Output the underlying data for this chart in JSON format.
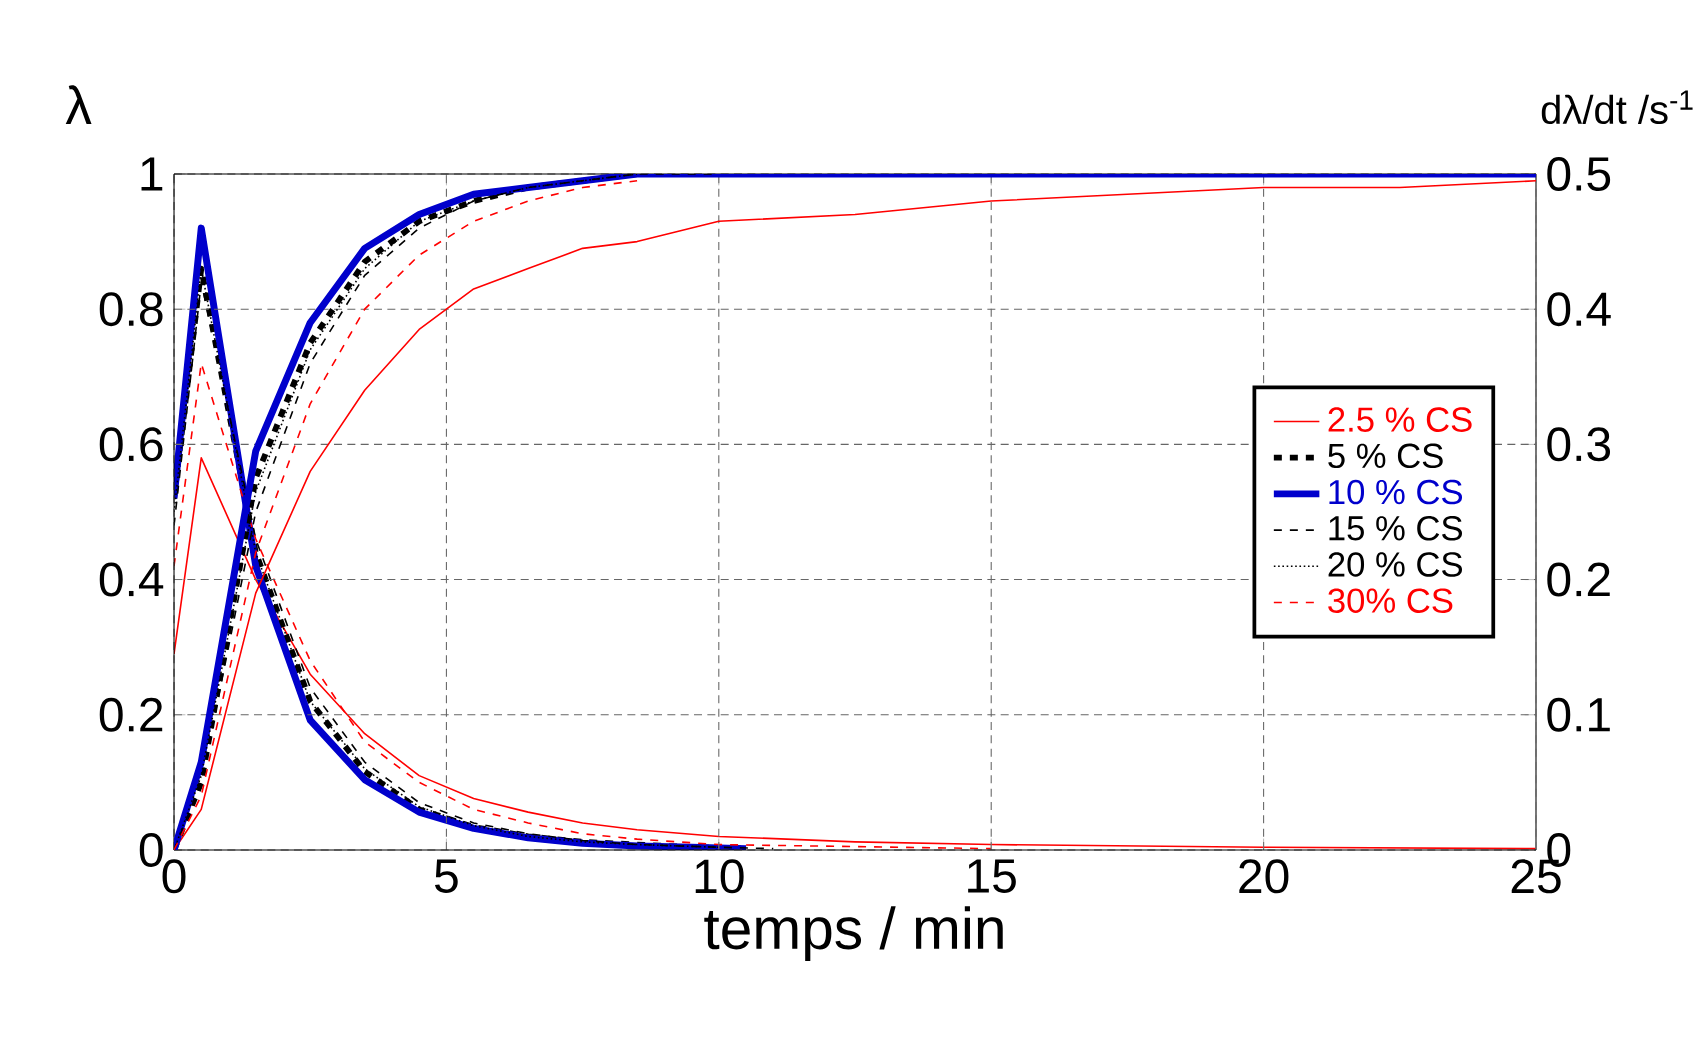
{
  "chart_data": {
    "type": "line",
    "xlabel": "temps / min",
    "ylabel": "λ",
    "y2label": "dλ/dt /s$^{-1}$",
    "xlim": [
      0,
      25
    ],
    "ylim": [
      0,
      1
    ],
    "y2lim": [
      0,
      0.5
    ],
    "xticks": [
      0,
      5,
      10,
      15,
      20,
      25
    ],
    "yticks": [
      0,
      0.2,
      0.4,
      0.6,
      0.8,
      1
    ],
    "y2ticks": [
      0,
      0.1,
      0.2,
      0.3,
      0.4,
      0.5
    ],
    "grid": true,
    "legend": "right",
    "series": [
      {
        "name": "2.5 % CS",
        "color": "#ff0000",
        "line_style": "solid",
        "x": [
          0,
          0.5,
          1.5,
          2.5,
          3.5,
          4.5,
          5.5,
          6.5,
          7.5,
          8.5,
          10,
          12.5,
          15,
          17.5,
          20,
          22.5,
          25
        ],
        "values": [
          0,
          0.06,
          0.38,
          0.56,
          0.68,
          0.77,
          0.83,
          0.86,
          0.89,
          0.9,
          0.93,
          0.94,
          0.96,
          0.97,
          0.98,
          0.98,
          0.99
        ]
      },
      {
        "name": "5 % CS",
        "color": "#000000",
        "line_style": "dashed",
        "x": [
          0,
          0.5,
          1.5,
          2.5,
          3.5,
          4.5,
          5.5,
          6.5,
          7.5,
          8.5,
          9.5,
          11
        ],
        "values": [
          0,
          0.1,
          0.55,
          0.75,
          0.87,
          0.93,
          0.96,
          0.98,
          0.99,
          1,
          1,
          1
        ]
      },
      {
        "name": "10 % CS",
        "color": "#0000cc",
        "line_style": "solid",
        "x": [
          0,
          0.5,
          1.5,
          2.5,
          3.5,
          4.5,
          5.5,
          6.5,
          7.5,
          8.5,
          9.5,
          25
        ],
        "values": [
          0,
          0.13,
          0.59,
          0.78,
          0.89,
          0.94,
          0.97,
          0.98,
          0.99,
          1,
          1,
          1
        ]
      },
      {
        "name": "15 % CS",
        "color": "#000000",
        "line_style": "dashed",
        "x": [
          0,
          0.5,
          1.5,
          2.5,
          3.5,
          4.5,
          5.5,
          6.5,
          7.5,
          8.5,
          10
        ],
        "values": [
          0,
          0.1,
          0.5,
          0.72,
          0.85,
          0.92,
          0.96,
          0.98,
          0.99,
          1,
          1
        ]
      },
      {
        "name": "20 % CS",
        "color": "#000000",
        "line_style": "dotted",
        "x": [
          0,
          0.5,
          1.5,
          2.5,
          3.5,
          4.5,
          5.5,
          6.5,
          7.5,
          8.5
        ],
        "values": [
          0,
          0.11,
          0.53,
          0.74,
          0.86,
          0.93,
          0.96,
          0.98,
          0.99,
          1
        ]
      },
      {
        "name": "30% CS",
        "color": "#ff0000",
        "line_style": "dashed",
        "x": [
          0,
          0.5,
          1.5,
          2.5,
          3.5,
          4.5,
          5.5,
          6.5,
          7.5,
          8.5
        ],
        "values": [
          0,
          0.08,
          0.44,
          0.66,
          0.8,
          0.88,
          0.93,
          0.96,
          0.98,
          0.99
        ]
      },
      {
        "axis": "y2",
        "color": "#ff0000",
        "line_style": "solid",
        "x": [
          0,
          0.5,
          1.5,
          2.5,
          3.5,
          4.5,
          5.5,
          6.5,
          7.5,
          8.5,
          10,
          12.5,
          15,
          20,
          25
        ],
        "values": [
          0.145,
          0.29,
          0.2,
          0.13,
          0.086,
          0.055,
          0.038,
          0.028,
          0.02,
          0.015,
          0.01,
          0.006,
          0.004,
          0.002,
          0.001
        ]
      },
      {
        "axis": "y2",
        "color": "#000000",
        "line_style": "dashed",
        "x": [
          0,
          0.5,
          1.5,
          2.5,
          3.5,
          4.5,
          5.5,
          6.5,
          7.5,
          8.5,
          9.5,
          10.5
        ],
        "values": [
          0.26,
          0.43,
          0.22,
          0.11,
          0.058,
          0.03,
          0.017,
          0.01,
          0.006,
          0.004,
          0.002,
          0.001
        ]
      },
      {
        "axis": "y2",
        "color": "#0000cc",
        "line_style": "solid",
        "x": [
          0,
          0.5,
          1.5,
          2.5,
          3.5,
          4.5,
          5.5,
          6.5,
          7.5,
          8.5,
          9.5,
          10.5
        ],
        "values": [
          0.26,
          0.46,
          0.21,
          0.096,
          0.052,
          0.028,
          0.016,
          0.009,
          0.005,
          0.003,
          0.002,
          0.001
        ]
      },
      {
        "axis": "y2",
        "color": "#000000",
        "line_style": "dashed",
        "x": [
          0,
          0.5,
          1.5,
          2.5,
          3.5,
          4.5,
          5.5,
          6.5,
          7.5,
          8.5,
          10,
          11
        ],
        "values": [
          0.24,
          0.42,
          0.23,
          0.12,
          0.065,
          0.035,
          0.02,
          0.012,
          0.007,
          0.004,
          0.002,
          0.001
        ]
      },
      {
        "axis": "y2",
        "color": "#000000",
        "line_style": "dotted",
        "x": [
          0,
          0.5,
          1.5,
          2.5,
          3.5,
          4.5,
          5.5,
          6.5,
          7.5,
          8.5,
          10
        ],
        "values": [
          0.25,
          0.43,
          0.22,
          0.11,
          0.06,
          0.032,
          0.018,
          0.01,
          0.006,
          0.004,
          0.002
        ]
      },
      {
        "axis": "y2",
        "color": "#ff0000",
        "line_style": "dashed",
        "x": [
          0,
          0.5,
          1.5,
          2.5,
          3.5,
          4.5,
          5.5,
          6.5,
          7.5,
          8.5,
          10,
          15
        ],
        "values": [
          0.21,
          0.36,
          0.23,
          0.14,
          0.08,
          0.05,
          0.03,
          0.02,
          0.012,
          0.008,
          0.004,
          0.001
        ]
      }
    ]
  }
}
